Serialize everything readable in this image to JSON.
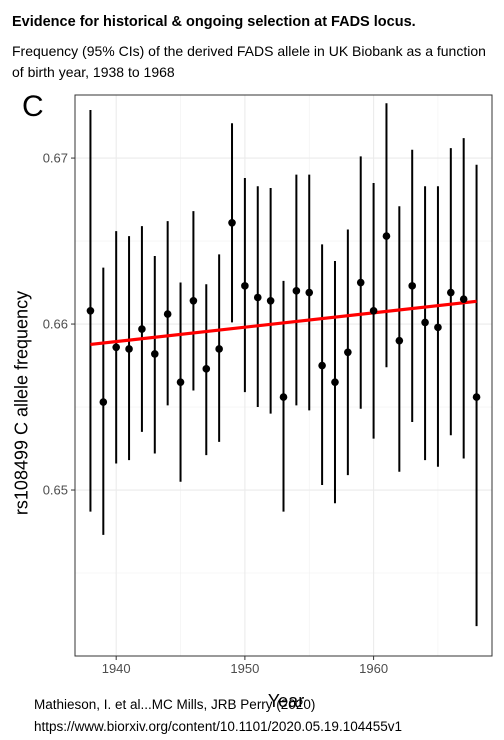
{
  "header": {
    "title": "Evidence for historical & ongoing selection at FADS locus.",
    "subtitle": "Frequency (95% CIs) of the derived FADS allele in UK Biobank as a function of birth year, 1938 to 1968"
  },
  "panel_label": "C",
  "footer": {
    "citation": "Mathieson, I. et al...MC Mills, JRB Perry (2020)",
    "url": "https://www.biorxiv.org/content/10.1101/2020.05.19.104455v1"
  },
  "chart_data": {
    "type": "scatter",
    "xlabel": "Year",
    "ylabel": "rs108499 C allele frequency",
    "xlim": [
      1936.8,
      1969.2
    ],
    "ylim": [
      0.64,
      0.6738
    ],
    "x_ticks": [
      1940,
      1950,
      1960
    ],
    "x_tick_labels": [
      "1940",
      "1950",
      "1960"
    ],
    "y_ticks": [
      0.65,
      0.66,
      0.67
    ],
    "y_tick_labels": [
      "0.65",
      "0.66",
      "0.67"
    ],
    "grid": true,
    "points": [
      {
        "x": 1938,
        "y": 0.6608,
        "lo": 0.6487,
        "hi": 0.6729
      },
      {
        "x": 1939,
        "y": 0.6553,
        "lo": 0.6473,
        "hi": 0.6634
      },
      {
        "x": 1940,
        "y": 0.6586,
        "lo": 0.6516,
        "hi": 0.6656
      },
      {
        "x": 1941,
        "y": 0.6585,
        "lo": 0.6518,
        "hi": 0.6653
      },
      {
        "x": 1942,
        "y": 0.6597,
        "lo": 0.6535,
        "hi": 0.6659
      },
      {
        "x": 1943,
        "y": 0.6582,
        "lo": 0.6522,
        "hi": 0.6641
      },
      {
        "x": 1944,
        "y": 0.6606,
        "lo": 0.6551,
        "hi": 0.6662
      },
      {
        "x": 1945,
        "y": 0.6565,
        "lo": 0.6505,
        "hi": 0.6625
      },
      {
        "x": 1946,
        "y": 0.6614,
        "lo": 0.656,
        "hi": 0.6668
      },
      {
        "x": 1947,
        "y": 0.6573,
        "lo": 0.6521,
        "hi": 0.6624
      },
      {
        "x": 1948,
        "y": 0.6585,
        "lo": 0.6529,
        "hi": 0.6642
      },
      {
        "x": 1949,
        "y": 0.6661,
        "lo": 0.6601,
        "hi": 0.6721
      },
      {
        "x": 1950,
        "y": 0.6623,
        "lo": 0.6559,
        "hi": 0.6688
      },
      {
        "x": 1951,
        "y": 0.6616,
        "lo": 0.655,
        "hi": 0.6683
      },
      {
        "x": 1952,
        "y": 0.6614,
        "lo": 0.6546,
        "hi": 0.6682
      },
      {
        "x": 1953,
        "y": 0.6556,
        "lo": 0.6487,
        "hi": 0.6626
      },
      {
        "x": 1954,
        "y": 0.662,
        "lo": 0.6551,
        "hi": 0.669
      },
      {
        "x": 1955,
        "y": 0.6619,
        "lo": 0.6548,
        "hi": 0.669
      },
      {
        "x": 1956,
        "y": 0.6575,
        "lo": 0.6503,
        "hi": 0.6648
      },
      {
        "x": 1957,
        "y": 0.6565,
        "lo": 0.6492,
        "hi": 0.6638
      },
      {
        "x": 1958,
        "y": 0.6583,
        "lo": 0.6509,
        "hi": 0.6657
      },
      {
        "x": 1959,
        "y": 0.6625,
        "lo": 0.6549,
        "hi": 0.6701
      },
      {
        "x": 1960,
        "y": 0.6608,
        "lo": 0.6531,
        "hi": 0.6685
      },
      {
        "x": 1961,
        "y": 0.6653,
        "lo": 0.6574,
        "hi": 0.6733
      },
      {
        "x": 1962,
        "y": 0.659,
        "lo": 0.6511,
        "hi": 0.6671
      },
      {
        "x": 1963,
        "y": 0.6623,
        "lo": 0.6541,
        "hi": 0.6705
      },
      {
        "x": 1964,
        "y": 0.6601,
        "lo": 0.6518,
        "hi": 0.6683
      },
      {
        "x": 1965,
        "y": 0.6598,
        "lo": 0.6514,
        "hi": 0.6683
      },
      {
        "x": 1966,
        "y": 0.6619,
        "lo": 0.6533,
        "hi": 0.6706
      },
      {
        "x": 1967,
        "y": 0.6615,
        "lo": 0.6519,
        "hi": 0.6712
      },
      {
        "x": 1968,
        "y": 0.6556,
        "lo": 0.6418,
        "hi": 0.6696
      }
    ],
    "trend_line": {
      "x": [
        1938,
        1968
      ],
      "y": [
        0.65877,
        0.66137
      ],
      "color": "#ff0000"
    },
    "point_color": "#000000"
  }
}
